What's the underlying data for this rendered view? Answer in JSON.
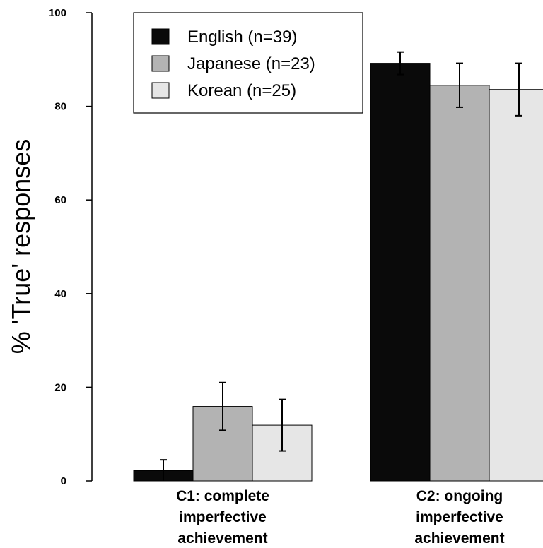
{
  "chart_data": {
    "type": "bar",
    "ylabel": "% 'True' responses",
    "xlabel": "",
    "ylim": [
      0,
      100
    ],
    "yticks": [
      0,
      20,
      40,
      60,
      80,
      100
    ],
    "categories": [
      [
        "C1: complete",
        "imperfective",
        "achievement"
      ],
      [
        "C2: ongoing",
        "imperfective",
        "achievement"
      ]
    ],
    "series": [
      {
        "name": "English (n=39)",
        "color": "#0a0a0a",
        "values": [
          2.2,
          89.2
        ],
        "errors": [
          2.3,
          2.4
        ]
      },
      {
        "name": "Japanese (n=23)",
        "color": "#b3b3b3",
        "values": [
          15.9,
          84.5
        ],
        "errors": [
          5.1,
          4.7
        ]
      },
      {
        "name": "Korean (n=25)",
        "color": "#e6e6e6",
        "values": [
          11.9,
          83.6
        ],
        "errors": [
          5.5,
          5.6
        ]
      }
    ],
    "legend_position": "top-left",
    "grid": false
  }
}
